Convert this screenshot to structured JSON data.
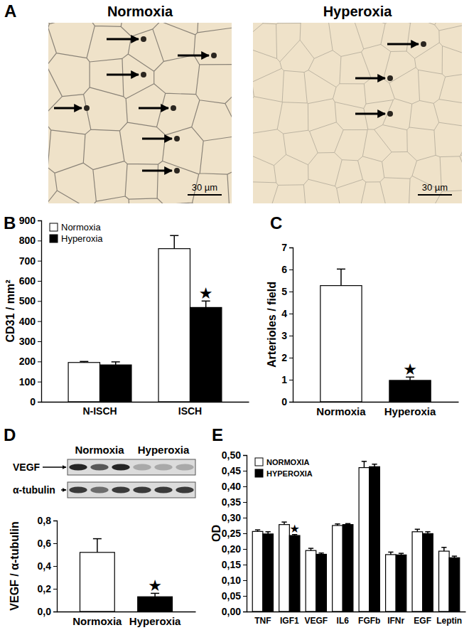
{
  "figure": {
    "panel": "A",
    "images": [
      {
        "title": "Normoxia",
        "scale_bar": "30 µm"
      },
      {
        "title": "Hyperoxia",
        "scale_bar": "30 µm"
      }
    ]
  },
  "chart_data": [
    {
      "panel": "B",
      "type": "bar",
      "categories": [
        "N-ISCH",
        "ISCH"
      ],
      "ylabel": "CD31 / mm²",
      "ylim": [
        0,
        900
      ],
      "yticks": [
        0,
        100,
        200,
        300,
        400,
        500,
        600,
        700,
        800,
        900
      ],
      "legend": "upper left",
      "series": [
        {
          "name": "Normoxia",
          "color": "#ffffff",
          "values": [
            195,
            760
          ],
          "errors": [
            5,
            65
          ]
        },
        {
          "name": "Hyperoxia",
          "color": "#000000",
          "values": [
            183,
            468
          ],
          "errors": [
            15,
            32
          ],
          "significance": [
            null,
            "★"
          ]
        }
      ]
    },
    {
      "panel": "C",
      "type": "bar",
      "categories": [
        "Normoxia",
        "Hyperoxia"
      ],
      "ylabel": "Arterioles / field",
      "values": [
        5.27,
        0.97
      ],
      "errors": [
        0.75,
        0.15
      ],
      "colors": [
        "#ffffff",
        "#000000"
      ],
      "significance": [
        null,
        "★"
      ],
      "ylim": [
        0,
        7
      ],
      "yticks": [
        0,
        1,
        2,
        3,
        4,
        5,
        6,
        7
      ]
    },
    {
      "panel": "D",
      "type": "bar",
      "categories": [
        "Normoxia",
        "Hyperoxia"
      ],
      "ylabel": "VEGF / α-tubulin",
      "values": [
        0.52,
        0.13
      ],
      "errors": [
        0.12,
        0.03
      ],
      "colors": [
        "#ffffff",
        "#000000"
      ],
      "significance": [
        null,
        "★"
      ],
      "ylim": [
        0,
        0.8
      ],
      "yticks": [
        {
          "value": 0,
          "label": "0,0"
        },
        {
          "value": 0.2,
          "label": "0,2"
        },
        {
          "value": 0.4,
          "label": "0,4"
        },
        {
          "value": 0.6,
          "label": "0,6"
        },
        {
          "value": 0.8,
          "label": "0,8"
        }
      ],
      "blot": {
        "lanes": [
          "Normoxia",
          "Hyperoxia"
        ],
        "rows": [
          "VEGF",
          "α-tubulin"
        ]
      }
    },
    {
      "panel": "E",
      "type": "bar",
      "categories": [
        "TNF",
        "IGF1",
        "VEGF",
        "IL6",
        "FGFb",
        "IFNr",
        "EGF",
        "Leptin"
      ],
      "ylabel": "OD",
      "ylim": [
        0,
        0.5
      ],
      "yticks": [
        {
          "value": 0,
          "label": "0,00"
        },
        {
          "value": 0.05,
          "label": "0,05"
        },
        {
          "value": 0.1,
          "label": "0,10"
        },
        {
          "value": 0.15,
          "label": "0,15"
        },
        {
          "value": 0.2,
          "label": "0,20"
        },
        {
          "value": 0.25,
          "label": "0,25"
        },
        {
          "value": 0.3,
          "label": "0,30"
        },
        {
          "value": 0.35,
          "label": "0,35"
        },
        {
          "value": 0.4,
          "label": "0,40"
        },
        {
          "value": 0.45,
          "label": "0,45"
        },
        {
          "value": 0.5,
          "label": "0,50"
        }
      ],
      "legend": "upper left",
      "series": [
        {
          "name": "NORMOXIA",
          "color": "#ffffff",
          "values": [
            0.256,
            0.278,
            0.195,
            0.275,
            0.46,
            0.182,
            0.255,
            0.193
          ],
          "errors": [
            0.005,
            0.008,
            0.007,
            0.005,
            0.02,
            0.008,
            0.008,
            0.012
          ]
        },
        {
          "name": "HYPEROXIA",
          "color": "#000000",
          "values": [
            0.248,
            0.243,
            0.183,
            0.278,
            0.463,
            0.181,
            0.249,
            0.172
          ],
          "errors": [
            0.007,
            0.003,
            0.004,
            0.003,
            0.008,
            0.005,
            0.006,
            0.005
          ],
          "significance": [
            null,
            "★",
            null,
            null,
            null,
            null,
            null,
            null
          ]
        }
      ]
    }
  ]
}
